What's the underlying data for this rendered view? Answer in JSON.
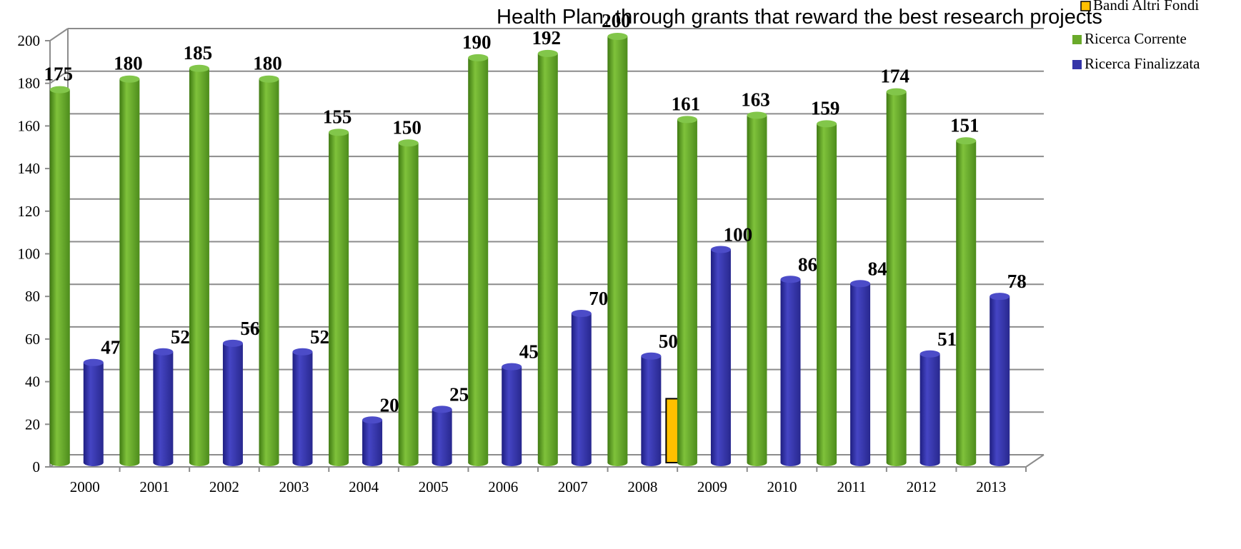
{
  "chart_data": {
    "type": "bar",
    "title": "Health Plan, through grants that reward the best research projects",
    "categories": [
      "2000",
      "2001",
      "2002",
      "2003",
      "2004",
      "2005",
      "2006",
      "2007",
      "2008",
      "2009",
      "2010",
      "2011",
      "2012",
      "2013"
    ],
    "ylim": [
      0,
      200
    ],
    "yticks": [
      0,
      20,
      40,
      60,
      80,
      100,
      120,
      140,
      160,
      180,
      200
    ],
    "grid": true,
    "legend_position": "top-right",
    "series": [
      {
        "name": "Bandi Altri Fondi",
        "color": "#ffc000",
        "values": [
          null,
          null,
          null,
          null,
          null,
          null,
          null,
          null,
          30,
          null,
          null,
          null,
          null,
          null
        ],
        "labels": false
      },
      {
        "name": "Ricerca Corrente",
        "color": "#6aaa2a",
        "values": [
          175,
          180,
          185,
          180,
          155,
          150,
          190,
          192,
          200,
          161,
          163,
          159,
          174,
          151
        ],
        "labels": true
      },
      {
        "name": "Ricerca Finalizzata",
        "color": "#3535a8",
        "values": [
          47,
          52,
          56,
          52,
          20,
          25,
          45,
          70,
          50,
          100,
          86,
          84,
          51,
          78
        ],
        "labels": true
      }
    ]
  }
}
